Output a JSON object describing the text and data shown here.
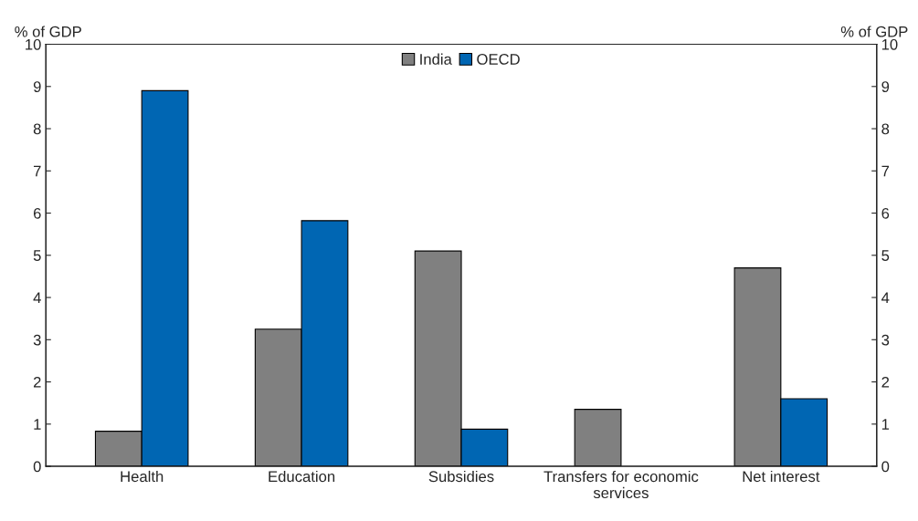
{
  "chart_data": {
    "type": "bar",
    "categories": [
      "Health",
      "Education",
      "Subsidies",
      "Transfers for economic\nservices",
      "Net interest"
    ],
    "series": [
      {
        "name": "India",
        "color": "#808080",
        "values": [
          0.83,
          3.25,
          5.1,
          1.35,
          4.7
        ]
      },
      {
        "name": "OECD",
        "color": "#0066b3",
        "values": [
          8.9,
          5.82,
          0.88,
          null,
          1.6
        ]
      }
    ],
    "ylabel": "% of GDP",
    "y2label": "% of GDP",
    "ylim": [
      0,
      10
    ],
    "yticks": [
      0,
      1,
      2,
      3,
      4,
      5,
      6,
      7,
      8,
      9,
      10
    ],
    "y2lim": [
      0,
      10
    ],
    "y2ticks": [
      0,
      1,
      2,
      3,
      4,
      5,
      6,
      7,
      8,
      9,
      10
    ],
    "grid": false,
    "legend": "top"
  }
}
